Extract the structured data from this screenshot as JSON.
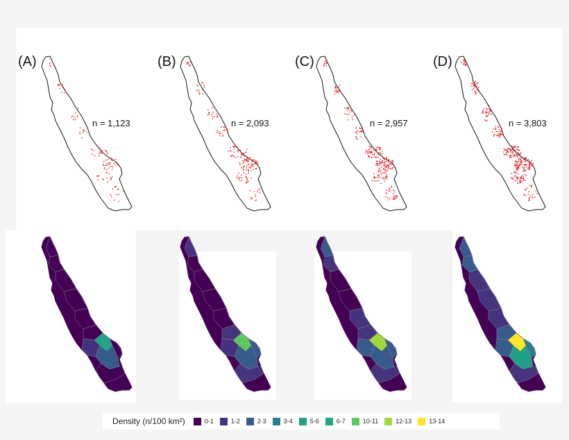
{
  "panels": [
    {
      "label": "(A)",
      "count": "n = 1,123",
      "hotspot_class": "6-7"
    },
    {
      "label": "(B)",
      "count": "n = 2,093",
      "hotspot_class": "10-11"
    },
    {
      "label": "(C)",
      "count": "n = 2,957",
      "hotspot_class": "12-13"
    },
    {
      "label": "(D)",
      "count": "n = 3,803",
      "hotspot_class": "13-14"
    }
  ],
  "legend": {
    "title": "Density (n/100 km²)",
    "items": [
      {
        "label": "0-1",
        "color": "#440154"
      },
      {
        "label": "1-2",
        "color": "#46337e"
      },
      {
        "label": "2-3",
        "color": "#365c8d"
      },
      {
        "label": "3-4",
        "color": "#277f8e"
      },
      {
        "label": "5-6",
        "color": "#1fa187"
      },
      {
        "label": "6-7",
        "color": "#21a585"
      },
      {
        "label": "10-11",
        "color": "#5ec962"
      },
      {
        "label": "12-13",
        "color": "#a0da39"
      },
      {
        "label": "13-14",
        "color": "#fde725"
      }
    ]
  },
  "colors": {
    "points": "#e8191a",
    "outline": "#111111",
    "region_border": "#8a8a8a"
  }
}
